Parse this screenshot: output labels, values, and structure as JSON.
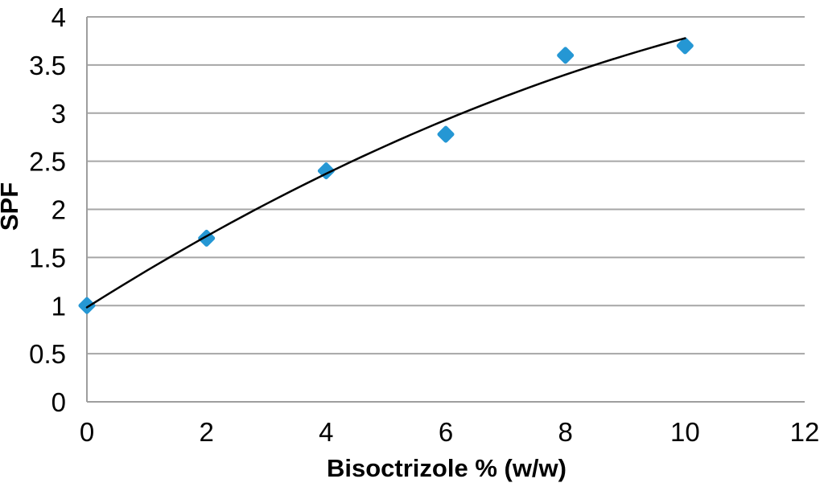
{
  "chart_data": {
    "type": "scatter",
    "title": "",
    "xlabel": "Bisoctrizole % (w/w)",
    "ylabel": "SPF",
    "points": [
      {
        "x": 0,
        "y": 1.0
      },
      {
        "x": 2,
        "y": 1.7
      },
      {
        "x": 4,
        "y": 2.4
      },
      {
        "x": 6,
        "y": 2.78
      },
      {
        "x": 8,
        "y": 3.6
      },
      {
        "x": 10,
        "y": 3.7
      }
    ],
    "xlim": [
      0,
      12
    ],
    "ylim": [
      0,
      4
    ],
    "x_tick_values": [
      0,
      2,
      4,
      6,
      8,
      10,
      12
    ],
    "x_tick_labels": [
      "0",
      "2",
      "4",
      "6",
      "8",
      "10",
      "12"
    ],
    "y_tick_values": [
      0,
      0.5,
      1,
      1.5,
      2,
      2.5,
      3,
      3.5,
      4
    ],
    "y_tick_labels": [
      "0",
      "0.5",
      "1",
      "1.5",
      "2",
      "2.5",
      "3",
      "3.5",
      "4"
    ],
    "grid": "horizontal-only",
    "legend_position": "none",
    "marker": {
      "shape": "diamond",
      "color": "#2597d4"
    },
    "trendline": {
      "type": "polynomial-order-2",
      "coefficients_abc": [
        0.9814,
        0.3922,
        -0.01125
      ],
      "x_start": 0,
      "x_end": 10,
      "color": "#000000"
    },
    "colors": {
      "gridline": "#a6a6a6",
      "axis_line": "#9e9e9e",
      "text": "#000000",
      "background": "#ffffff"
    }
  }
}
